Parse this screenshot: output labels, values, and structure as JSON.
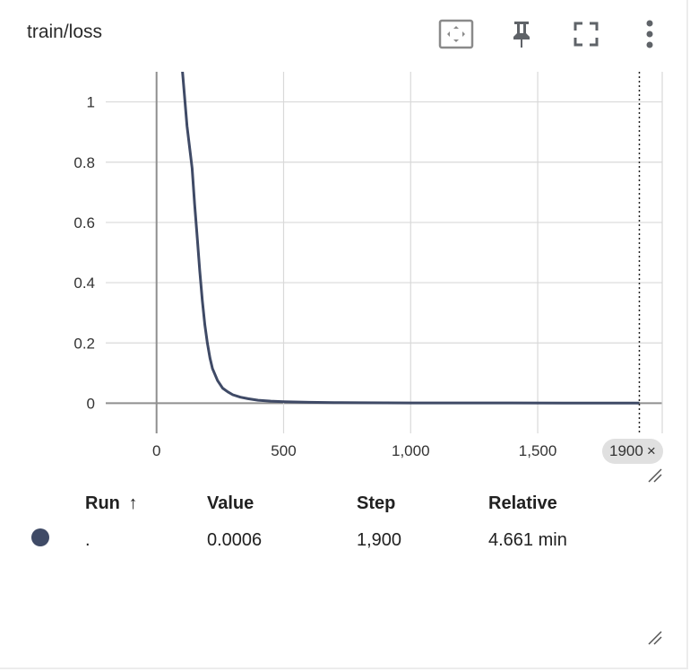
{
  "panel": {
    "title": "train/loss"
  },
  "toolbar": {
    "icons": [
      "fit-domain-icon",
      "pin-icon",
      "fullscreen-icon",
      "more-vert-icon"
    ]
  },
  "chart_data": {
    "type": "line",
    "title": "train/loss",
    "xlabel": "",
    "ylabel": "",
    "xlim": [
      -200,
      1990
    ],
    "ylim": [
      -0.1,
      1.1
    ],
    "x_ticks": [
      "0",
      "500",
      "1,000",
      "1,500"
    ],
    "y_ticks": [
      "0",
      "0.2",
      "0.4",
      "0.6",
      "0.8",
      "1"
    ],
    "grid": true,
    "series": [
      {
        "color": "#3f4a66",
        "x": [
          100,
          120,
          140,
          150,
          160,
          170,
          180,
          190,
          200,
          210,
          220,
          240,
          260,
          280,
          300,
          330,
          360,
          400,
          450,
          500,
          600,
          700,
          800,
          1000,
          1200,
          1400,
          1600,
          1800,
          1900
        ],
        "y": [
          1.12,
          0.92,
          0.78,
          0.66,
          0.55,
          0.44,
          0.34,
          0.26,
          0.2,
          0.15,
          0.115,
          0.075,
          0.05,
          0.038,
          0.028,
          0.02,
          0.015,
          0.01,
          0.007,
          0.005,
          0.003,
          0.002,
          0.0015,
          0.001,
          0.0009,
          0.0008,
          0.0007,
          0.0006,
          0.0006
        ]
      }
    ],
    "cursor": {
      "x": 1900,
      "label": "1900"
    }
  },
  "tooltip_table": {
    "headers": {
      "run": "Run",
      "sort_icon": "↑",
      "value": "Value",
      "step": "Step",
      "relative": "Relative"
    },
    "rows": [
      {
        "color": "#3f4a66",
        "run": ".",
        "value": "0.0006",
        "step": "1,900",
        "relative": "4.661 min"
      }
    ]
  }
}
